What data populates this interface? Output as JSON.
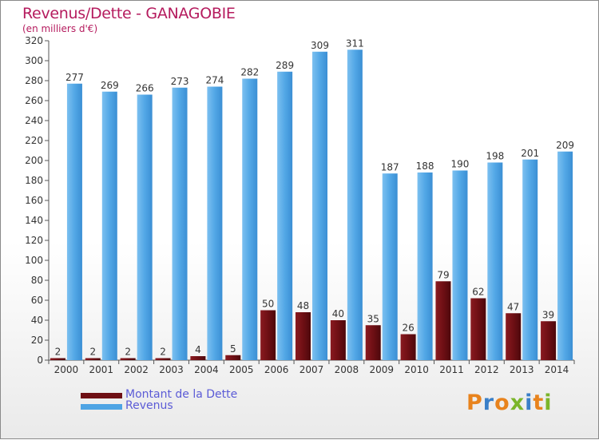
{
  "title": "Revenus/Dette - GANAGOBIE",
  "subtitle": "(en milliers d'€)",
  "legend": {
    "dette_label": "Montant de la Dette",
    "revenus_label": "Revenus"
  },
  "logo": {
    "text": "Proxiti",
    "letters": [
      "P",
      "r",
      "o",
      "x",
      "i",
      "t",
      "i"
    ]
  },
  "colors": {
    "dette": "#6e0f14",
    "revenus": "#4ea4e4",
    "title": "#b51b5e",
    "legend_text": "#5b5bd6"
  },
  "chart_data": {
    "type": "bar",
    "categories": [
      "2000",
      "2001",
      "2002",
      "2003",
      "2004",
      "2005",
      "2006",
      "2007",
      "2008",
      "2009",
      "2010",
      "2011",
      "2012",
      "2013",
      "2014"
    ],
    "series": [
      {
        "name": "Montant de la Dette",
        "values": [
          2,
          2,
          2,
          2,
          4,
          5,
          50,
          48,
          40,
          35,
          26,
          79,
          62,
          47,
          39
        ]
      },
      {
        "name": "Revenus",
        "values": [
          277,
          269,
          266,
          273,
          274,
          282,
          289,
          309,
          311,
          187,
          188,
          190,
          198,
          201,
          209
        ]
      }
    ],
    "ylim": [
      0,
      320
    ],
    "yticks": [
      0,
      20,
      40,
      60,
      80,
      100,
      120,
      140,
      160,
      180,
      200,
      220,
      240,
      260,
      280,
      300,
      320
    ],
    "grid": false,
    "legend_position": "bottom-left"
  }
}
